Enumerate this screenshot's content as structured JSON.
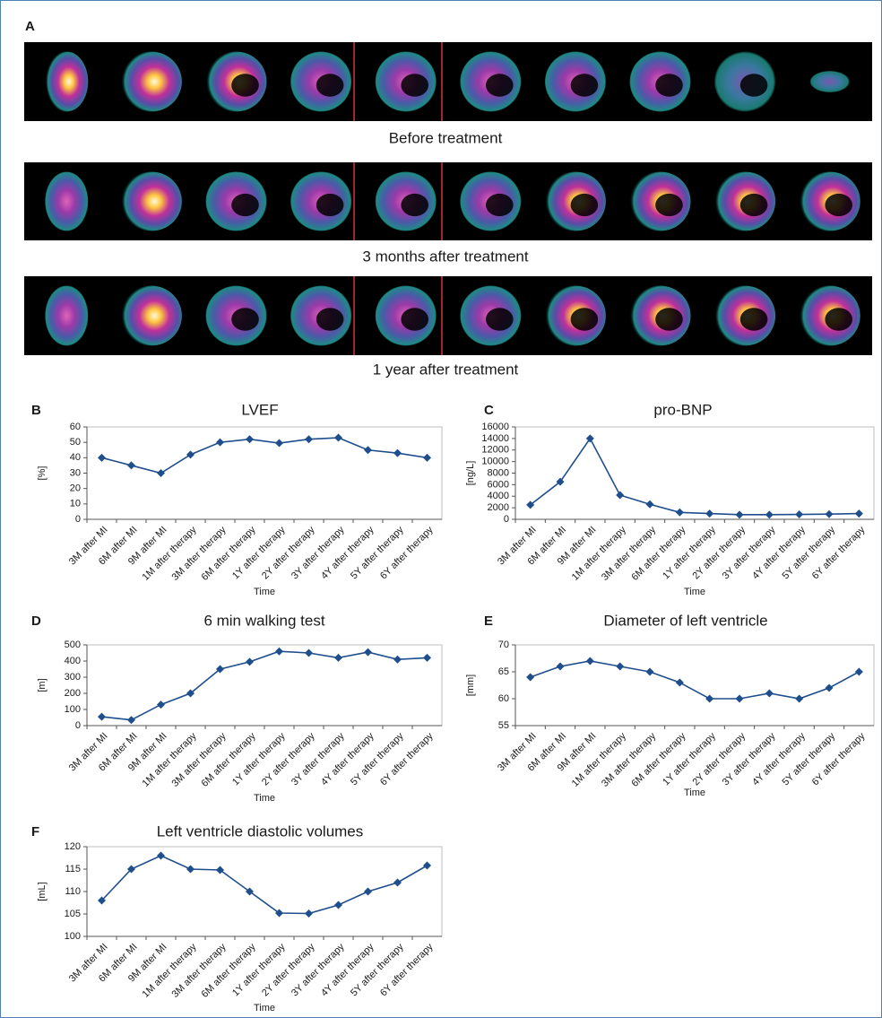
{
  "panel_a": {
    "label": "A",
    "captions": [
      "Before treatment",
      "3 months after treatment",
      "1 year after treatment"
    ]
  },
  "chart_data": [
    {
      "type": "line",
      "label": "B",
      "title": "LVEF",
      "ylabel": "[%]",
      "xlabel": "Time",
      "categories": [
        "3M after MI",
        "6M after MI",
        "9M after MI",
        "1M after therapy",
        "3M after therapy",
        "6M after therapy",
        "1Y after therapy",
        "2Y after therapy",
        "3Y after therapy",
        "4Y after therapy",
        "5Y after therapy",
        "6Y after therapy"
      ],
      "values": [
        40,
        35,
        30,
        42,
        50,
        52,
        49.5,
        52,
        53,
        45,
        43,
        40
      ],
      "color": "#1f4e8c",
      "ylim": [
        0,
        60
      ],
      "yticks": [
        0,
        10,
        20,
        30,
        40,
        50,
        60
      ],
      "grid": false
    },
    {
      "type": "line",
      "label": "C",
      "title": "pro-BNP",
      "ylabel": "[ng/L]",
      "xlabel": "Time",
      "categories": [
        "3M after MI",
        "6M after MI",
        "9M after MI",
        "1M after therapy",
        "3M after therapy",
        "6M after therapy",
        "1Y after therapy",
        "2Y after therapy",
        "3Y after therapy",
        "4Y after therapy",
        "5Y after therapy",
        "6Y after therapy"
      ],
      "values": [
        2500,
        6500,
        14000,
        4200,
        2600,
        1200,
        1000,
        800,
        800,
        850,
        900,
        1000
      ],
      "color": "#1f4e8c",
      "ylim": [
        0,
        16000
      ],
      "yticks": [
        0,
        2000,
        4000,
        6000,
        8000,
        10000,
        12000,
        14000,
        16000
      ],
      "grid": false
    },
    {
      "type": "line",
      "label": "D",
      "title": "6 min walking test",
      "ylabel": "[m]",
      "xlabel": "Time",
      "categories": [
        "3M after MI",
        "6M after MI",
        "9M after MI",
        "1M after therapy",
        "3M after therapy",
        "6M after therapy",
        "1Y after therapy",
        "2Y after therapy",
        "3Y after therapy",
        "4Y after therapy",
        "5Y after therapy",
        "6Y after therapy"
      ],
      "values": [
        55,
        35,
        130,
        200,
        350,
        395,
        460,
        450,
        420,
        455,
        410,
        420
      ],
      "color": "#1f4e8c",
      "ylim": [
        0,
        500
      ],
      "yticks": [
        0,
        100,
        200,
        300,
        400,
        500
      ],
      "grid": false
    },
    {
      "type": "line",
      "label": "E",
      "title": "Diameter of left ventricle",
      "ylabel": "[mm]",
      "xlabel": "Time",
      "categories": [
        "3M after MI",
        "6M after MI",
        "9M after MI",
        "1M after therapy",
        "3M after therapy",
        "6M after therapy",
        "1Y after therapy",
        "2Y after therapy",
        "3Y after therapy",
        "4Y after therapy",
        "5Y after therapy",
        "6Y after therapy"
      ],
      "values": [
        64,
        66,
        67,
        66,
        65,
        63,
        60,
        60,
        61,
        60,
        62,
        65
      ],
      "color": "#1f4e8c",
      "ylim": [
        55,
        70
      ],
      "yticks": [
        55,
        60,
        65,
        70
      ],
      "grid": false
    },
    {
      "type": "line",
      "label": "F",
      "title": "Left ventricle diastolic volumes",
      "ylabel": "[mL]",
      "xlabel": "Time",
      "categories": [
        "3M after MI",
        "6M after MI",
        "9M after MI",
        "1M after therapy",
        "3M after therapy",
        "6M after therapy",
        "1Y after therapy",
        "2Y after therapy",
        "3Y after therapy",
        "4Y after therapy",
        "5Y after therapy",
        "6Y after therapy"
      ],
      "values": [
        108,
        115,
        118,
        115,
        114.8,
        110,
        105.2,
        105.1,
        107,
        110,
        112,
        115.8
      ],
      "color": "#1f4e8c",
      "ylim": [
        100,
        120
      ],
      "yticks": [
        100,
        105,
        110,
        115,
        120
      ],
      "grid": false
    }
  ]
}
